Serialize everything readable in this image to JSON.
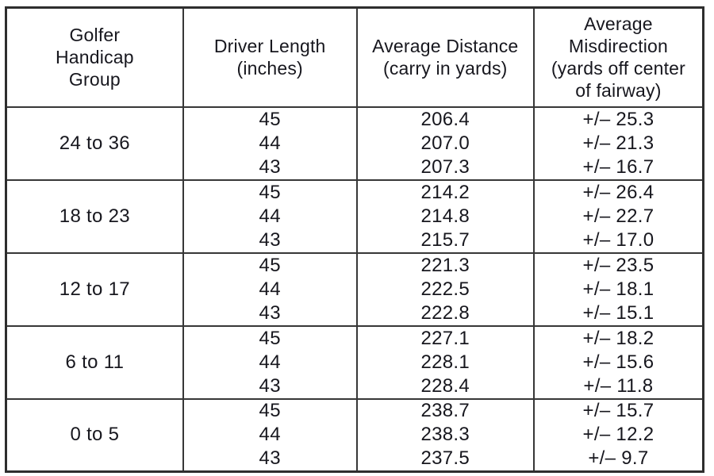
{
  "header": {
    "col1_lines": [
      "Golfer",
      "Handicap",
      "Group"
    ],
    "col2_lines": [
      "Driver Length",
      "(inches)"
    ],
    "col3_lines": [
      "Average Distance",
      "(carry in yards)"
    ],
    "col4_lines": [
      "Average",
      "Misdirection",
      "(yards off center",
      "of fairway)"
    ]
  },
  "chart_data": {
    "type": "table",
    "title": "",
    "columns": [
      "Golfer Handicap Group",
      "Driver Length (inches)",
      "Average Distance (carry in yards)",
      "Average Misdirection (yards off center of fairway)"
    ],
    "groups": [
      {
        "handicap_group": "24 to 36",
        "rows": [
          {
            "driver_length": "45",
            "avg_distance": "206.4",
            "avg_misdirection": "+/– 25.3"
          },
          {
            "driver_length": "44",
            "avg_distance": "207.0",
            "avg_misdirection": "+/– 21.3"
          },
          {
            "driver_length": "43",
            "avg_distance": "207.3",
            "avg_misdirection": "+/– 16.7"
          }
        ]
      },
      {
        "handicap_group": "18 to 23",
        "rows": [
          {
            "driver_length": "45",
            "avg_distance": "214.2",
            "avg_misdirection": "+/– 26.4"
          },
          {
            "driver_length": "44",
            "avg_distance": "214.8",
            "avg_misdirection": "+/– 22.7"
          },
          {
            "driver_length": "43",
            "avg_distance": "215.7",
            "avg_misdirection": "+/– 17.0"
          }
        ]
      },
      {
        "handicap_group": "12 to 17",
        "rows": [
          {
            "driver_length": "45",
            "avg_distance": "221.3",
            "avg_misdirection": "+/– 23.5"
          },
          {
            "driver_length": "44",
            "avg_distance": "222.5",
            "avg_misdirection": "+/– 18.1"
          },
          {
            "driver_length": "43",
            "avg_distance": "222.8",
            "avg_misdirection": "+/– 15.1"
          }
        ]
      },
      {
        "handicap_group": "6 to 11",
        "rows": [
          {
            "driver_length": "45",
            "avg_distance": "227.1",
            "avg_misdirection": "+/– 18.2"
          },
          {
            "driver_length": "44",
            "avg_distance": "228.1",
            "avg_misdirection": "+/– 15.6"
          },
          {
            "driver_length": "43",
            "avg_distance": "228.4",
            "avg_misdirection": "+/– 11.8"
          }
        ]
      },
      {
        "handicap_group": "0 to 5",
        "rows": [
          {
            "driver_length": "45",
            "avg_distance": "238.7",
            "avg_misdirection": "+/– 15.7"
          },
          {
            "driver_length": "44",
            "avg_distance": "238.3",
            "avg_misdirection": "+/– 12.2"
          },
          {
            "driver_length": "43",
            "avg_distance": "237.5",
            "avg_misdirection": "+/– 9.7"
          }
        ]
      }
    ]
  }
}
